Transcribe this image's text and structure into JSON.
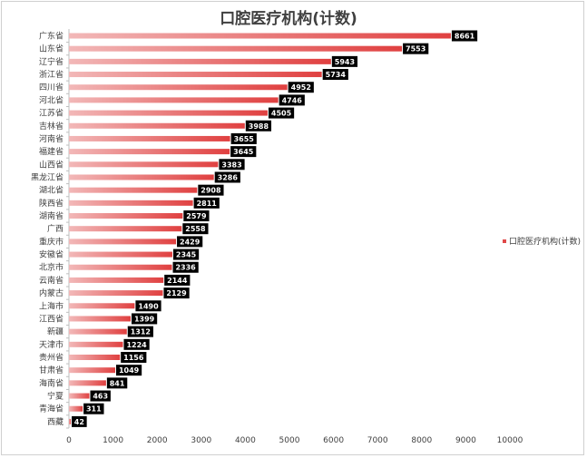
{
  "chart_data": {
    "type": "bar",
    "orientation": "horizontal",
    "title": "口腔医疗机构(计数)",
    "categories": [
      "广东省",
      "山东省",
      "辽宁省",
      "浙江省",
      "四川省",
      "河北省",
      "江苏省",
      "吉林省",
      "河南省",
      "福建省",
      "山西省",
      "黑龙江省",
      "湖北省",
      "陕西省",
      "湖南省",
      "广西",
      "重庆市",
      "安徽省",
      "北京市",
      "云南省",
      "内蒙古",
      "上海市",
      "江西省",
      "新疆",
      "天津市",
      "贵州省",
      "甘肃省",
      "海南省",
      "宁夏",
      "青海省",
      "西藏"
    ],
    "series": [
      {
        "name": "口腔医疗机构(计数)",
        "values": [
          8661,
          7553,
          5943,
          5734,
          4952,
          4746,
          4505,
          3988,
          3655,
          3645,
          3383,
          3286,
          2908,
          2811,
          2579,
          2558,
          2429,
          2345,
          2336,
          2144,
          2129,
          1490,
          1399,
          1312,
          1224,
          1156,
          1049,
          841,
          463,
          311,
          42
        ]
      }
    ],
    "xlim": [
      0,
      10000
    ],
    "xticks": [
      0,
      1000,
      2000,
      3000,
      4000,
      5000,
      6000,
      7000,
      8000,
      9000,
      10000
    ],
    "grid": false,
    "legend_position": "right",
    "bar_color": "#e04848"
  }
}
